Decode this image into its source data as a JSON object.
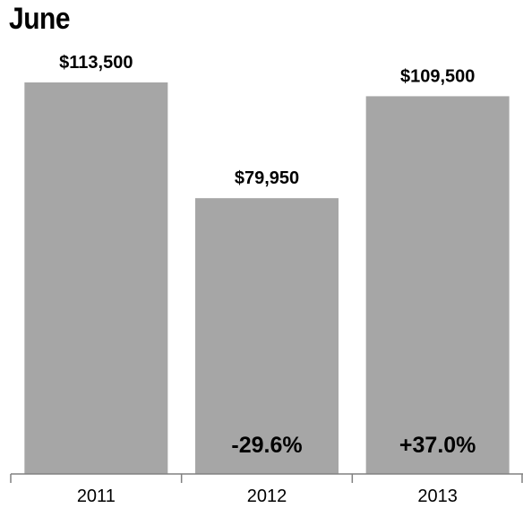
{
  "chart_data": {
    "type": "bar",
    "title": "June",
    "categories": [
      "2011",
      "2012",
      "2013"
    ],
    "values": [
      113500,
      79950,
      109500
    ],
    "value_labels": [
      "$113,500",
      "$79,950",
      "$109,500"
    ],
    "change_labels": [
      "",
      "-29.6%",
      "+37.0%"
    ],
    "xlabel": "",
    "ylabel": "",
    "ylim": [
      0,
      113500
    ],
    "grid": false,
    "colors": {
      "bar": "#a6a6a6",
      "axis": "#808080",
      "text": "#000000"
    }
  }
}
